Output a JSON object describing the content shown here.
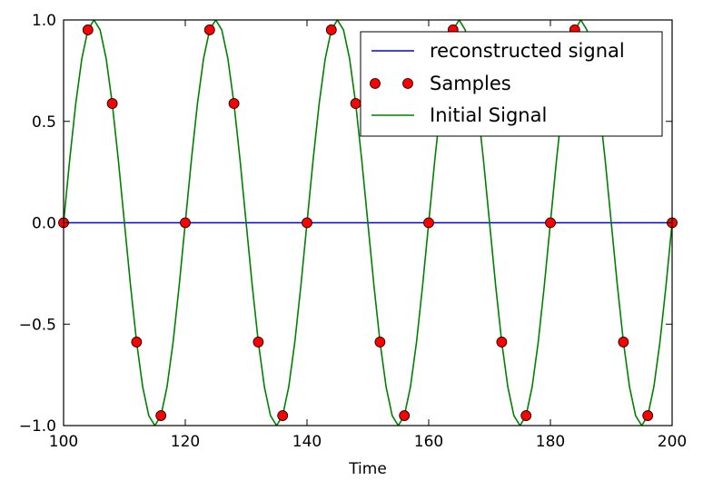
{
  "chart_data": {
    "type": "line",
    "title": "",
    "xlabel": "Time",
    "ylabel": "",
    "xlim": [
      100,
      200
    ],
    "ylim": [
      -1.0,
      1.0
    ],
    "x_ticks": [
      100,
      120,
      140,
      160,
      180,
      200
    ],
    "x_tick_labels": [
      "100",
      "120",
      "140",
      "160",
      "180",
      "200"
    ],
    "y_ticks": [
      1.0,
      0.5,
      0.0,
      -0.5,
      -1.0
    ],
    "y_tick_labels": [
      "1.0",
      "0.5",
      "0.0",
      "−0.5",
      "−1.0"
    ],
    "grid": false,
    "legend_position": "top-right",
    "series": [
      {
        "name": "reconstructed signal",
        "style": "line",
        "color": "#0000ff",
        "x": [
          100,
          200
        ],
        "y": [
          0,
          0
        ]
      },
      {
        "name": "Samples",
        "style": "markers",
        "color": "#ff0000",
        "x": [
          100,
          104,
          108,
          112,
          116,
          120,
          124,
          128,
          132,
          136,
          140,
          144,
          148,
          152,
          156,
          160,
          164,
          168,
          172,
          176,
          180,
          184,
          188,
          192,
          196,
          200
        ],
        "y": [
          0.0,
          0.951,
          0.588,
          -0.588,
          -0.951,
          0.0,
          0.951,
          0.588,
          -0.588,
          -0.951,
          0.0,
          0.951,
          0.588,
          -0.588,
          -0.951,
          0.0,
          0.951,
          0.588,
          -0.588,
          -0.951,
          0.0,
          0.951,
          0.588,
          -0.588,
          -0.951,
          0.0
        ]
      },
      {
        "name": "Initial Signal",
        "style": "line",
        "color": "#008000",
        "x": [
          100,
          101,
          102,
          103,
          104,
          105,
          106,
          107,
          108,
          109,
          110,
          111,
          112,
          113,
          114,
          115,
          116,
          117,
          118,
          119,
          120,
          121,
          122,
          123,
          124,
          125,
          126,
          127,
          128,
          129,
          130,
          131,
          132,
          133,
          134,
          135,
          136,
          137,
          138,
          139,
          140,
          141,
          142,
          143,
          144,
          145,
          146,
          147,
          148,
          149,
          150,
          151,
          152,
          153,
          154,
          155,
          156,
          157,
          158,
          159,
          160,
          161,
          162,
          163,
          164,
          165,
          166,
          167,
          168,
          169,
          170,
          171,
          172,
          173,
          174,
          175,
          176,
          177,
          178,
          179,
          180,
          181,
          182,
          183,
          184,
          185,
          186,
          187,
          188,
          189,
          190,
          191,
          192,
          193,
          194,
          195,
          196,
          197,
          198,
          199,
          200
        ],
        "y": [
          0.0,
          0.309,
          0.588,
          0.809,
          0.951,
          1.0,
          0.951,
          0.809,
          0.588,
          0.309,
          0.0,
          -0.309,
          -0.588,
          -0.809,
          -0.951,
          -1.0,
          -0.951,
          -0.809,
          -0.588,
          -0.309,
          0.0,
          0.309,
          0.588,
          0.809,
          0.951,
          1.0,
          0.951,
          0.809,
          0.588,
          0.309,
          0.0,
          -0.309,
          -0.588,
          -0.809,
          -0.951,
          -1.0,
          -0.951,
          -0.809,
          -0.588,
          -0.309,
          0.0,
          0.309,
          0.588,
          0.809,
          0.951,
          1.0,
          0.951,
          0.809,
          0.588,
          0.309,
          0.0,
          -0.309,
          -0.588,
          -0.809,
          -0.951,
          -1.0,
          -0.951,
          -0.809,
          -0.588,
          -0.309,
          0.0,
          0.309,
          0.588,
          0.809,
          0.951,
          1.0,
          0.951,
          0.809,
          0.588,
          0.309,
          0.0,
          -0.309,
          -0.588,
          -0.809,
          -0.951,
          -1.0,
          -0.951,
          -0.809,
          -0.588,
          -0.309,
          0.0,
          0.309,
          0.588,
          0.809,
          0.951,
          1.0,
          0.951,
          0.809,
          0.588,
          0.309,
          0.0,
          -0.309,
          -0.588,
          -0.809,
          -0.951,
          -1.0,
          -0.951,
          -0.809,
          -0.588,
          -0.309,
          0.0
        ]
      }
    ]
  }
}
